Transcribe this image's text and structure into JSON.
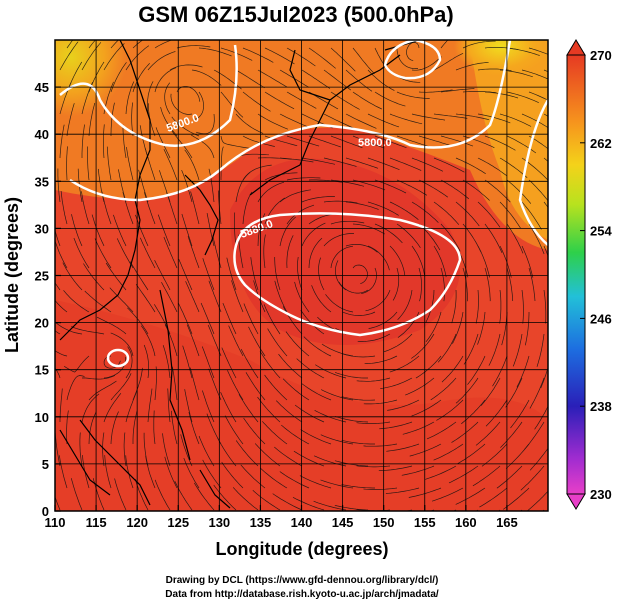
{
  "title": "GSM 06Z15Jul2023 (500.0hPa)",
  "xlabel": "Longitude (degrees)",
  "ylabel": "Latitude  (degrees)",
  "xticks": [
    "110",
    "115",
    "120",
    "125",
    "130",
    "135",
    "140",
    "145",
    "150",
    "155",
    "160",
    "165"
  ],
  "yticks": [
    "0",
    "5",
    "10",
    "15",
    "20",
    "25",
    "30",
    "35",
    "40",
    "45"
  ],
  "colorbar": {
    "ticks": [
      "230",
      "238",
      "246",
      "254",
      "262",
      "270"
    ]
  },
  "contour_labels": [
    "5800.0",
    "5800.0",
    "5880.0"
  ],
  "credits": {
    "line1": "Drawing by DCL (https://www.gfd-dennou.org/library/dcl/)",
    "line2": "Data from http://database.rish.kyoto-u.ac.jp/arch/jmadata/"
  },
  "colors": {
    "hot": "#e63a23",
    "warm": "#f06a22",
    "orange": "#f6a21d",
    "yellow": "#f3e21c",
    "contour": "#ffffff"
  }
}
